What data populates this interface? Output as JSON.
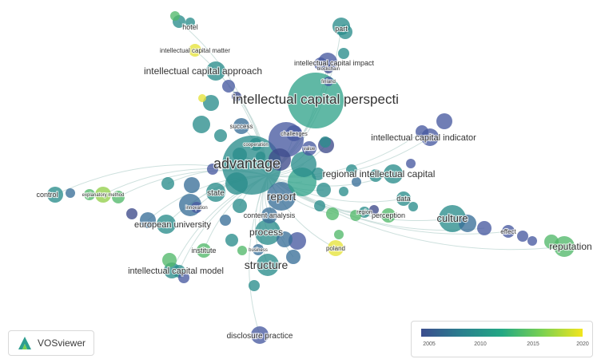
{
  "network": {
    "labels": [
      "intellectual capital perspecti",
      "advantage",
      "report",
      "structure",
      "process",
      "culture",
      "regional intellectual capital",
      "intellectual capital indicator",
      "intellectual capital approach",
      "intellectual capital model",
      "european university",
      "reputation",
      "disclosure practice",
      "intellectual capital impact",
      "intellectual capital matter",
      "hotel",
      "part",
      "state",
      "control",
      "data",
      "content analysis",
      "perception",
      "poland",
      "institute",
      "success",
      "challenges",
      "effect",
      "innovation",
      "business",
      "blockchain",
      "finland",
      "cooperation",
      "explanatory method",
      "region",
      "value"
    ]
  },
  "brand": {
    "name": "VOSviewer",
    "icon": "vosviewer-logo-icon"
  },
  "color_legend": {
    "ticks": [
      "2005",
      "2010",
      "2015",
      "2020"
    ],
    "colors": [
      "#3b4d8e",
      "#2a7f8e",
      "#23a884",
      "#7ad151",
      "#f2e51d"
    ]
  }
}
